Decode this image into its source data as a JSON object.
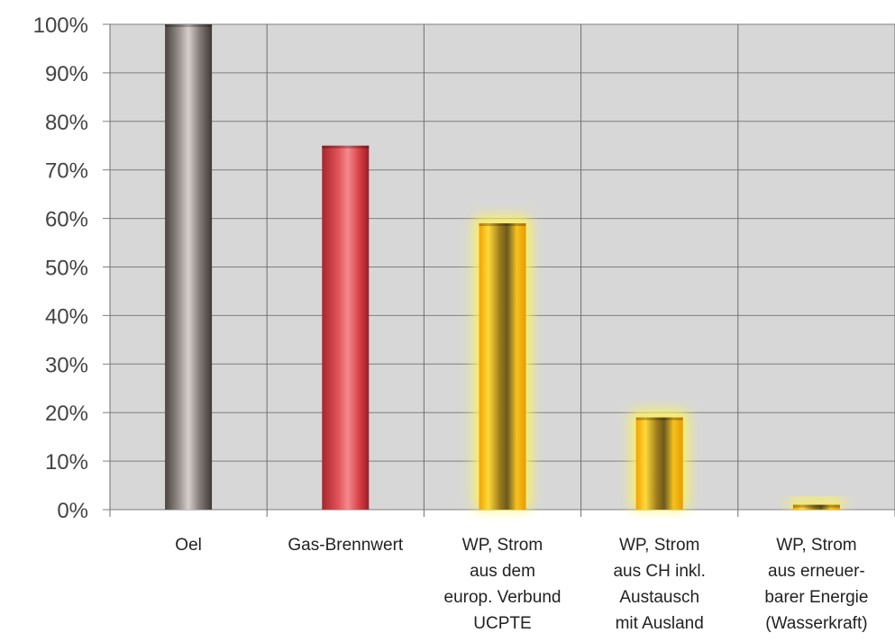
{
  "chart_data": {
    "type": "bar",
    "categories": [
      [
        "Oel"
      ],
      [
        "Gas-Brennwert"
      ],
      [
        "WP, Strom",
        "aus dem",
        "europ. Verbund",
        "UCPTE"
      ],
      [
        "WP, Strom",
        "aus CH inkl.",
        "Austausch",
        "mit Ausland"
      ],
      [
        "WP, Strom",
        "aus erneuer-",
        "barer Energie",
        "(Wasserkraft)"
      ]
    ],
    "values": [
      100,
      75,
      59,
      19,
      1
    ],
    "ylim": [
      0,
      100
    ],
    "yticks": [
      "0%",
      "10%",
      "20%",
      "30%",
      "40%",
      "50%",
      "60%",
      "70%",
      "80%",
      "90%",
      "100%"
    ],
    "grid": true,
    "bar_styles": [
      "grey",
      "red",
      "gold",
      "gold",
      "gold"
    ]
  }
}
